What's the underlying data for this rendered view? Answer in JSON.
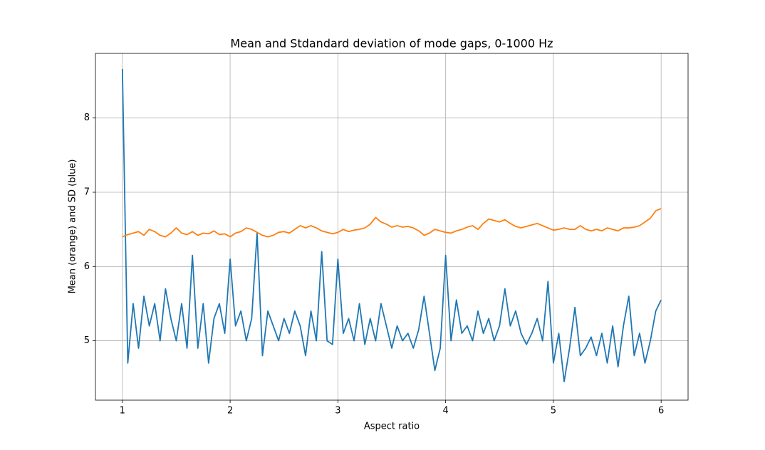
{
  "chart_data": {
    "type": "line",
    "title": "Mean and Stdandard deviation of mode gaps, 0-1000 Hz",
    "xlabel": "Aspect ratio",
    "ylabel": "Mean (orange) and SD (blue)",
    "x": [
      1,
      1.05,
      1.1,
      1.15,
      1.2,
      1.25,
      1.3,
      1.35,
      1.4,
      1.45,
      1.5,
      1.55,
      1.6,
      1.65,
      1.7,
      1.75,
      1.8,
      1.85,
      1.9,
      1.95,
      2,
      2.05,
      2.1,
      2.15,
      2.2,
      2.25,
      2.3,
      2.35,
      2.4,
      2.45,
      2.5,
      2.55,
      2.6,
      2.65,
      2.7,
      2.75,
      2.8,
      2.85,
      2.9,
      2.95,
      3,
      3.05,
      3.1,
      3.15,
      3.2,
      3.25,
      3.3,
      3.35,
      3.4,
      3.45,
      3.5,
      3.55,
      3.6,
      3.65,
      3.7,
      3.75,
      3.8,
      3.85,
      3.9,
      3.95,
      4,
      4.05,
      4.1,
      4.15,
      4.2,
      4.25,
      4.3,
      4.35,
      4.4,
      4.45,
      4.5,
      4.55,
      4.6,
      4.65,
      4.7,
      4.75,
      4.8,
      4.85,
      4.9,
      4.95,
      5,
      5.05,
      5.1,
      5.15,
      5.2,
      5.25,
      5.3,
      5.35,
      5.4,
      5.45,
      5.5,
      5.55,
      5.6,
      5.65,
      5.7,
      5.75,
      5.8,
      5.85,
      5.9,
      5.95,
      6
    ],
    "series": [
      {
        "color": "#1f77b4",
        "values": [
          8.66,
          4.7,
          5.5,
          4.9,
          5.6,
          5.2,
          5.5,
          5.0,
          5.7,
          5.3,
          5.0,
          5.5,
          4.9,
          6.15,
          4.9,
          5.5,
          4.7,
          5.3,
          5.5,
          5.1,
          6.1,
          5.2,
          5.4,
          5.0,
          5.3,
          6.45,
          4.8,
          5.4,
          5.2,
          5.0,
          5.3,
          5.1,
          5.4,
          5.2,
          4.8,
          5.4,
          5.0,
          6.2,
          5.0,
          4.95,
          6.1,
          5.1,
          5.3,
          5.0,
          5.5,
          4.95,
          5.3,
          5.0,
          5.5,
          5.2,
          4.9,
          5.2,
          5.0,
          5.1,
          4.9,
          5.15,
          5.6,
          5.1,
          4.6,
          4.9,
          6.15,
          5.0,
          5.55,
          5.1,
          5.2,
          5.0,
          5.4,
          5.1,
          5.3,
          5.0,
          5.2,
          5.7,
          5.2,
          5.4,
          5.1,
          4.95,
          5.1,
          5.3,
          5.0,
          5.8,
          4.7,
          5.1,
          4.45,
          4.9,
          5.45,
          4.8,
          4.9,
          5.05,
          4.8,
          5.1,
          4.7,
          5.2,
          4.65,
          5.2,
          5.6,
          4.8,
          5.1,
          4.7,
          5.0,
          5.4,
          5.55
        ]
      },
      {
        "color": "#ff7f0e",
        "values": [
          6.4,
          6.43,
          6.45,
          6.47,
          6.42,
          6.5,
          6.47,
          6.42,
          6.4,
          6.45,
          6.52,
          6.45,
          6.43,
          6.47,
          6.42,
          6.45,
          6.44,
          6.48,
          6.43,
          6.44,
          6.4,
          6.45,
          6.47,
          6.52,
          6.5,
          6.46,
          6.42,
          6.4,
          6.42,
          6.46,
          6.47,
          6.45,
          6.5,
          6.55,
          6.52,
          6.55,
          6.52,
          6.48,
          6.46,
          6.44,
          6.46,
          6.5,
          6.47,
          6.49,
          6.5,
          6.52,
          6.57,
          6.66,
          6.6,
          6.57,
          6.53,
          6.55,
          6.53,
          6.54,
          6.52,
          6.48,
          6.42,
          6.45,
          6.5,
          6.48,
          6.46,
          6.45,
          6.48,
          6.5,
          6.53,
          6.55,
          6.5,
          6.58,
          6.64,
          6.62,
          6.6,
          6.63,
          6.58,
          6.54,
          6.52,
          6.54,
          6.56,
          6.58,
          6.55,
          6.52,
          6.49,
          6.5,
          6.52,
          6.5,
          6.5,
          6.55,
          6.5,
          6.48,
          6.5,
          6.48,
          6.52,
          6.5,
          6.48,
          6.52,
          6.52,
          6.53,
          6.55,
          6.6,
          6.65,
          6.75,
          6.78
        ]
      }
    ],
    "xlim": [
      0.75,
      6.25
    ],
    "xticks": [
      1,
      2,
      3,
      4,
      5,
      6
    ],
    "ylim": [
      4.2,
      8.87
    ],
    "yticks": [
      5,
      6,
      7,
      8
    ],
    "grid": true
  }
}
